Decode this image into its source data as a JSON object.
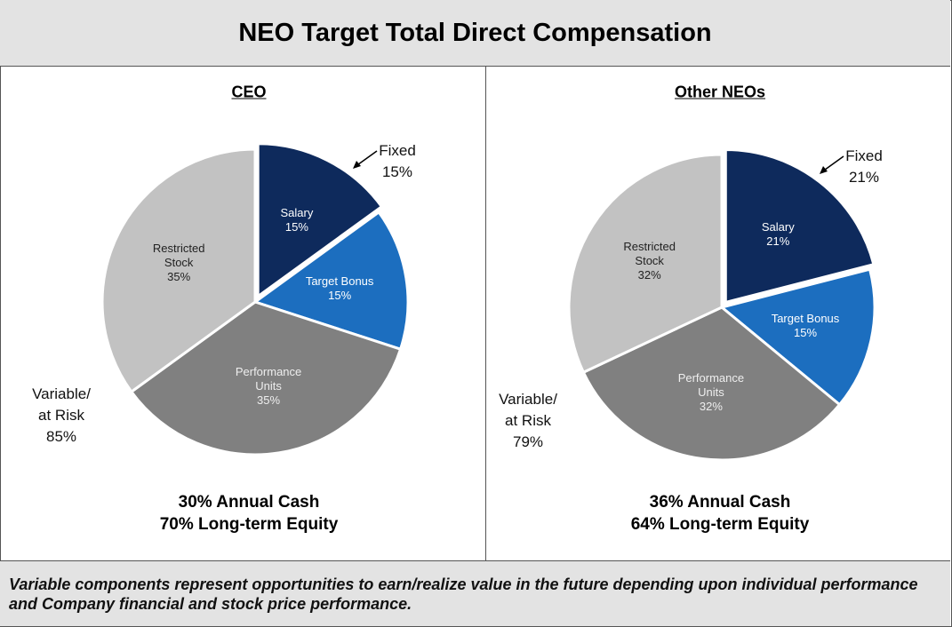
{
  "title": "NEO Target Total Direct Compensation",
  "footer": "Variable components represent opportunities to earn/realize value in the future depending upon individual performance and Company financial and stock price performance.",
  "chart_data": [
    {
      "type": "pie",
      "title": "CEO",
      "categories": [
        "Salary",
        "Target Bonus",
        "Performance Units",
        "Restricted Stock"
      ],
      "values": [
        15,
        15,
        35,
        35
      ],
      "value_labels": [
        "15%",
        "15%",
        "35%",
        "35%"
      ],
      "colors": [
        "#0e2a5c",
        "#1c6ebf",
        "#808080",
        "#c2c2c2"
      ],
      "annotations": [
        {
          "text": "Fixed",
          "value_label": "15%"
        },
        {
          "text": "Variable/ at Risk",
          "value_label": "85%"
        }
      ],
      "notes": [
        "30% Annual Cash",
        "70% Long-term Equity"
      ]
    },
    {
      "type": "pie",
      "title": "Other NEOs",
      "categories": [
        "Salary",
        "Target Bonus",
        "Performance Units",
        "Restricted Stock"
      ],
      "values": [
        21,
        15,
        32,
        32
      ],
      "value_labels": [
        "21%",
        "15%",
        "32%",
        "32%"
      ],
      "colors": [
        "#0e2a5c",
        "#1c6ebf",
        "#808080",
        "#c2c2c2"
      ],
      "annotations": [
        {
          "text": "Fixed",
          "value_label": "21%"
        },
        {
          "text": "Variable/ at Risk",
          "value_label": "79%"
        }
      ],
      "notes": [
        "36% Annual Cash",
        "64% Long-term Equity"
      ]
    }
  ]
}
